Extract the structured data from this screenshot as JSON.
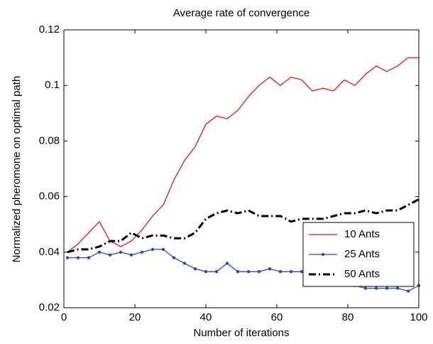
{
  "chart_data": {
    "type": "line",
    "title": "Average rate of convergence",
    "xlabel": "Number of iterations",
    "ylabel": "Normalized pheromone on optimal path",
    "x": [
      1,
      4,
      7,
      10,
      13,
      16,
      19,
      22,
      25,
      28,
      31,
      34,
      37,
      40,
      43,
      46,
      49,
      52,
      55,
      58,
      61,
      64,
      67,
      70,
      73,
      76,
      79,
      82,
      85,
      88,
      91,
      94,
      97,
      100
    ],
    "series": [
      {
        "name": "10 Ants",
        "color": "#e8141a",
        "linestyle": "solid",
        "marker": "none",
        "values": [
          0.04,
          0.043,
          0.047,
          0.051,
          0.044,
          0.042,
          0.044,
          0.048,
          0.053,
          0.057,
          0.066,
          0.073,
          0.078,
          0.086,
          0.089,
          0.088,
          0.091,
          0.096,
          0.1,
          0.103,
          0.1,
          0.103,
          0.102,
          0.098,
          0.099,
          0.098,
          0.102,
          0.1,
          0.104,
          0.107,
          0.105,
          0.107,
          0.11,
          0.11
        ]
      },
      {
        "name": "25 Ants",
        "color": "#2b4ea3",
        "linestyle": "solid",
        "marker": "dot",
        "values": [
          0.038,
          0.038,
          0.038,
          0.04,
          0.039,
          0.04,
          0.039,
          0.04,
          0.041,
          0.041,
          0.038,
          0.036,
          0.034,
          0.033,
          0.033,
          0.036,
          0.033,
          0.033,
          0.033,
          0.034,
          0.033,
          0.033,
          0.033,
          0.034,
          0.033,
          0.032,
          0.03,
          0.028,
          0.027,
          0.027,
          0.027,
          0.027,
          0.026,
          0.028
        ]
      },
      {
        "name": "50 Ants",
        "color": "#000000",
        "linestyle": "dashdot",
        "marker": "none",
        "values": [
          0.04,
          0.041,
          0.041,
          0.042,
          0.044,
          0.044,
          0.047,
          0.045,
          0.046,
          0.046,
          0.045,
          0.045,
          0.047,
          0.052,
          0.054,
          0.055,
          0.054,
          0.055,
          0.053,
          0.053,
          0.053,
          0.051,
          0.052,
          0.052,
          0.052,
          0.053,
          0.054,
          0.054,
          0.055,
          0.054,
          0.055,
          0.055,
          0.057,
          0.059
        ]
      }
    ],
    "xlim": [
      0,
      100
    ],
    "xticks": [
      0,
      20,
      40,
      60,
      80,
      100
    ],
    "ylim": [
      0.02,
      0.12
    ],
    "yticks": [
      0.02,
      0.04,
      0.06,
      0.08,
      0.1,
      0.12
    ],
    "grid": false,
    "legend": "lower right"
  }
}
